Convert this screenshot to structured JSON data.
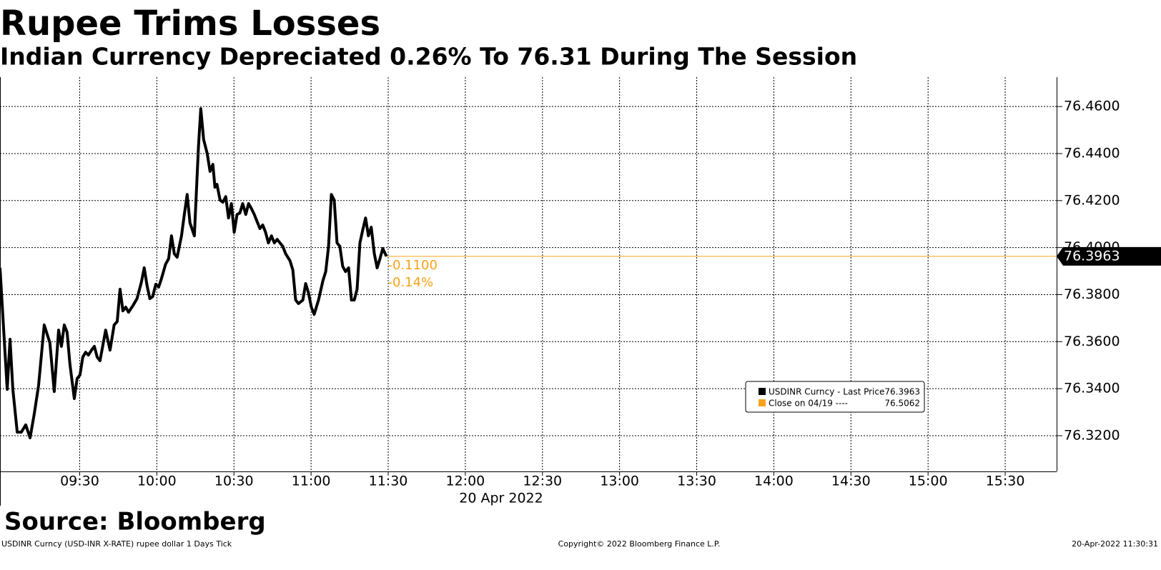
{
  "chart_data": {
    "type": "line",
    "title": "Rupee Trims Losses",
    "subtitle": "Indian Currency Depreciated 0.26% To 76.31 During The Session",
    "xlabel": "20 Apr 2022",
    "source": "Source: Bloomberg",
    "footer_left": "USDINR Curncy (USD-INR X-RATE) rupee dollar 1 Days  Tick",
    "footer_center": "Copyright© 2022 Bloomberg Finance L.P.",
    "footer_right": "20-Apr-2022 11:30:31",
    "xlim": [
      539,
      950
    ],
    "xticks": [
      {
        "value": 570,
        "label": "09:30"
      },
      {
        "value": 600,
        "label": "10:00"
      },
      {
        "value": 630,
        "label": "10:30"
      },
      {
        "value": 660,
        "label": "11:00"
      },
      {
        "value": 690,
        "label": "11:30"
      },
      {
        "value": 720,
        "label": "12:00"
      },
      {
        "value": 750,
        "label": "12:30"
      },
      {
        "value": 780,
        "label": "13:00"
      },
      {
        "value": 810,
        "label": "13:30"
      },
      {
        "value": 840,
        "label": "14:00"
      },
      {
        "value": 870,
        "label": "14:30"
      },
      {
        "value": 900,
        "label": "15:00"
      },
      {
        "value": 930,
        "label": "15:30"
      }
    ],
    "ylim": [
      76.3048,
      76.4725
    ],
    "yticks": [
      {
        "value": 76.32,
        "label": "76.3200"
      },
      {
        "value": 76.34,
        "label": "76.3400"
      },
      {
        "value": 76.36,
        "label": "76.3600"
      },
      {
        "value": 76.38,
        "label": "76.3800"
      },
      {
        "value": 76.4,
        "label": "76.4000"
      },
      {
        "value": 76.42,
        "label": "76.4200"
      },
      {
        "value": 76.44,
        "label": "76.4400"
      },
      {
        "value": 76.46,
        "label": "76.4600"
      }
    ],
    "grid": true,
    "x": [
      539.0,
      541.8,
      542.9,
      544.0,
      545.7,
      547.3,
      549.0,
      550.7,
      552.3,
      554.0,
      556.2,
      558.4,
      560.1,
      561.8,
      562.9,
      564.0,
      565.1,
      566.2,
      567.9,
      569.0,
      570.1,
      571.2,
      572.3,
      573.4,
      574.6,
      575.7,
      576.8,
      577.9,
      580.1,
      581.8,
      583.4,
      584.6,
      585.7,
      586.8,
      587.9,
      589.0,
      590.7,
      592.3,
      594.0,
      595.1,
      596.2,
      597.3,
      598.4,
      599.6,
      600.7,
      601.8,
      603.4,
      604.6,
      605.7,
      606.8,
      607.9,
      609.6,
      610.7,
      611.8,
      612.9,
      614.6,
      616.2,
      617.1,
      618.2,
      619.6,
      620.7,
      621.8,
      622.6,
      623.4,
      624.6,
      625.7,
      626.8,
      627.9,
      629.0,
      630.1,
      631.2,
      632.3,
      633.4,
      634.6,
      635.7,
      636.8,
      637.9,
      639.0,
      640.1,
      641.2,
      642.3,
      643.4,
      644.6,
      645.7,
      646.8,
      647.9,
      649.0,
      650.1,
      651.8,
      652.9,
      654.0,
      655.1,
      656.8,
      657.9,
      659.0,
      660.1,
      661.2,
      662.9,
      664.6,
      665.7,
      666.8,
      667.9,
      669.0,
      670.1,
      671.2,
      672.3,
      673.4,
      674.6,
      675.7,
      676.8,
      677.9,
      679.0,
      680.1,
      681.2,
      682.3,
      683.4,
      684.6,
      685.7,
      686.8,
      687.9,
      689.3
    ],
    "series": [
      {
        "name": "USDINR Curncy - Last Price",
        "color": "#000000",
        "last": 76.3963,
        "values": [
          76.3914,
          76.3397,
          76.361,
          76.3397,
          76.3215,
          76.3215,
          76.3246,
          76.3191,
          76.3291,
          76.3413,
          76.3671,
          76.3595,
          76.3388,
          76.3649,
          76.358,
          76.3671,
          76.364,
          76.3504,
          76.3358,
          76.3443,
          76.3458,
          76.3534,
          76.3555,
          76.3543,
          76.3564,
          76.358,
          76.3534,
          76.3519,
          76.3649,
          76.3564,
          76.3671,
          76.3686,
          76.3823,
          76.3731,
          76.3747,
          76.3725,
          76.3753,
          76.3783,
          76.3853,
          76.3914,
          76.3838,
          76.3783,
          76.3792,
          76.3844,
          76.3832,
          76.3868,
          76.3929,
          76.3953,
          76.405,
          76.3974,
          76.3959,
          76.405,
          76.4141,
          76.4226,
          76.4105,
          76.405,
          76.443,
          76.4591,
          76.446,
          76.44,
          76.4324,
          76.4354,
          76.4257,
          76.4269,
          76.4202,
          76.4193,
          76.4217,
          76.4126,
          76.4187,
          76.4065,
          76.4141,
          76.4147,
          76.4187,
          76.4141,
          76.4187,
          76.4166,
          76.4141,
          76.4111,
          76.4081,
          76.4096,
          76.4065,
          76.402,
          76.405,
          76.402,
          76.4035,
          76.402,
          76.4005,
          76.3974,
          76.3944,
          76.3905,
          76.3777,
          76.3762,
          76.3777,
          76.3847,
          76.3807,
          76.3747,
          76.3716,
          76.3777,
          76.3859,
          76.3898,
          76.4005,
          76.4226,
          76.4202,
          76.402,
          76.4005,
          76.392,
          76.3898,
          76.3914,
          76.3777,
          76.3777,
          76.3823,
          76.402,
          76.4075,
          76.4126,
          76.405,
          76.4087,
          76.3974,
          76.3914,
          76.3953,
          76.3996,
          76.3963
        ]
      }
    ],
    "last_line_color": "#f7a21b",
    "change": {
      "value": -0.11,
      "label": "-0.1100",
      "pct": -0.14,
      "pct_label": "-0.14%"
    },
    "reference": {
      "name": "Close on 04/19 ----",
      "color": "#f7a21b",
      "value": 76.5062
    }
  }
}
